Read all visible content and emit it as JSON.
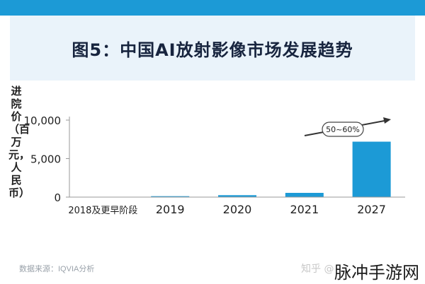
{
  "title": "图5：中国AI放射影像市场发展趋势",
  "source": "数据来源：IQVIA分析",
  "watermark_faint": "知乎 @",
  "watermark_main": "脉冲手游网",
  "colors": {
    "topbar": "#1c9ad6",
    "bar": "#1c9ad6",
    "title_band": "#eaf3fa",
    "title_text": "#17243e"
  },
  "chart_data": {
    "type": "bar",
    "ylabel": "进院价（百万元，人民币）",
    "categories": [
      "2018及更早阶段",
      "2019",
      "2020",
      "2021",
      "2027"
    ],
    "values": [
      0,
      120,
      250,
      550,
      7200
    ],
    "ylim": [
      0,
      10000
    ],
    "yticks": [
      0,
      5000,
      10000
    ],
    "ytick_labels": [
      "0",
      "5,000",
      "10,000"
    ],
    "grid": false,
    "annotation": "50~60%"
  }
}
